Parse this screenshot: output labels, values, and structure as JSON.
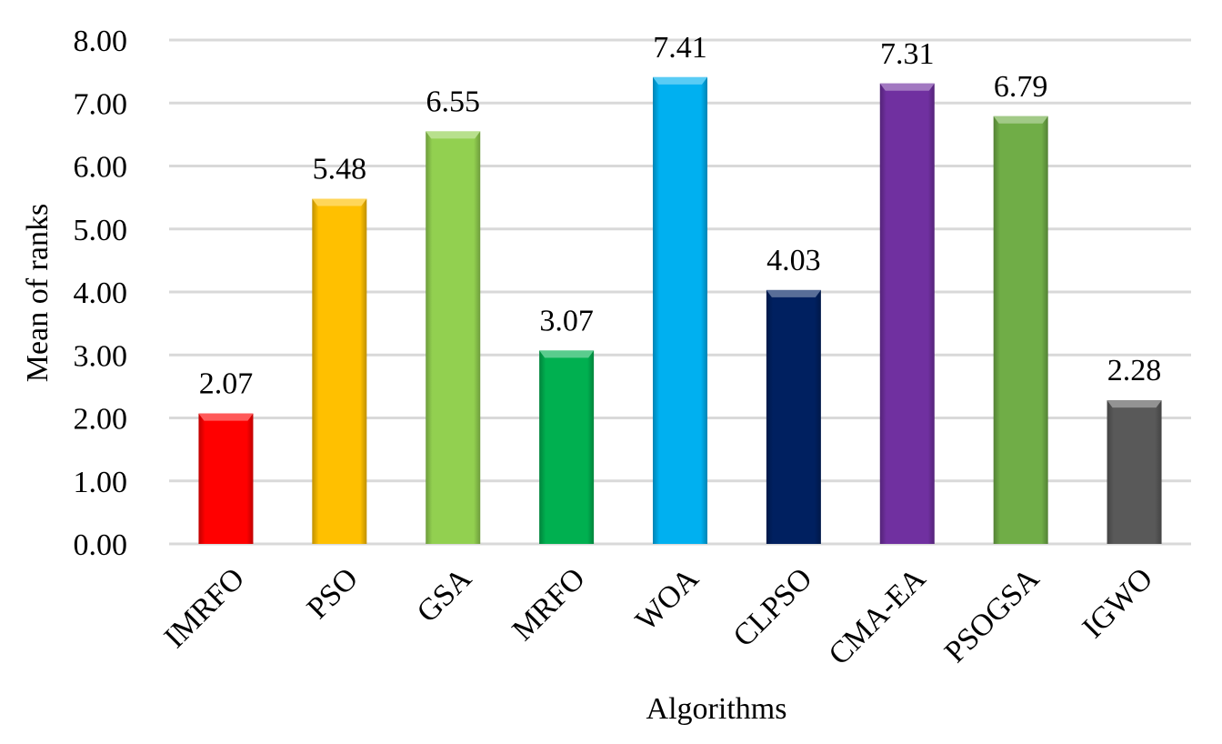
{
  "chart_data": {
    "type": "bar",
    "title": "",
    "xlabel": "Algorithms",
    "ylabel": "Mean of ranks",
    "ylim": [
      0,
      8
    ],
    "yticks": [
      "0.00",
      "1.00",
      "2.00",
      "3.00",
      "4.00",
      "5.00",
      "6.00",
      "7.00",
      "8.00"
    ],
    "grid": true,
    "legend": "none",
    "categories": [
      "IMRFO",
      "PSO",
      "GSA",
      "MRFO",
      "WOA",
      "CLPSO",
      "CMA-EA",
      "PSOGSA",
      "IGWO"
    ],
    "values": [
      2.07,
      5.48,
      6.55,
      3.07,
      7.41,
      4.03,
      7.31,
      6.79,
      2.28
    ],
    "value_labels": [
      "2.07",
      "5.48",
      "6.55",
      "3.07",
      "7.41",
      "4.03",
      "7.31",
      "6.79",
      "2.28"
    ],
    "colors": [
      "#ff0000",
      "#ffc000",
      "#92d050",
      "#00b050",
      "#00b0f0",
      "#002060",
      "#7030a0",
      "#70ad47",
      "#595959"
    ]
  }
}
